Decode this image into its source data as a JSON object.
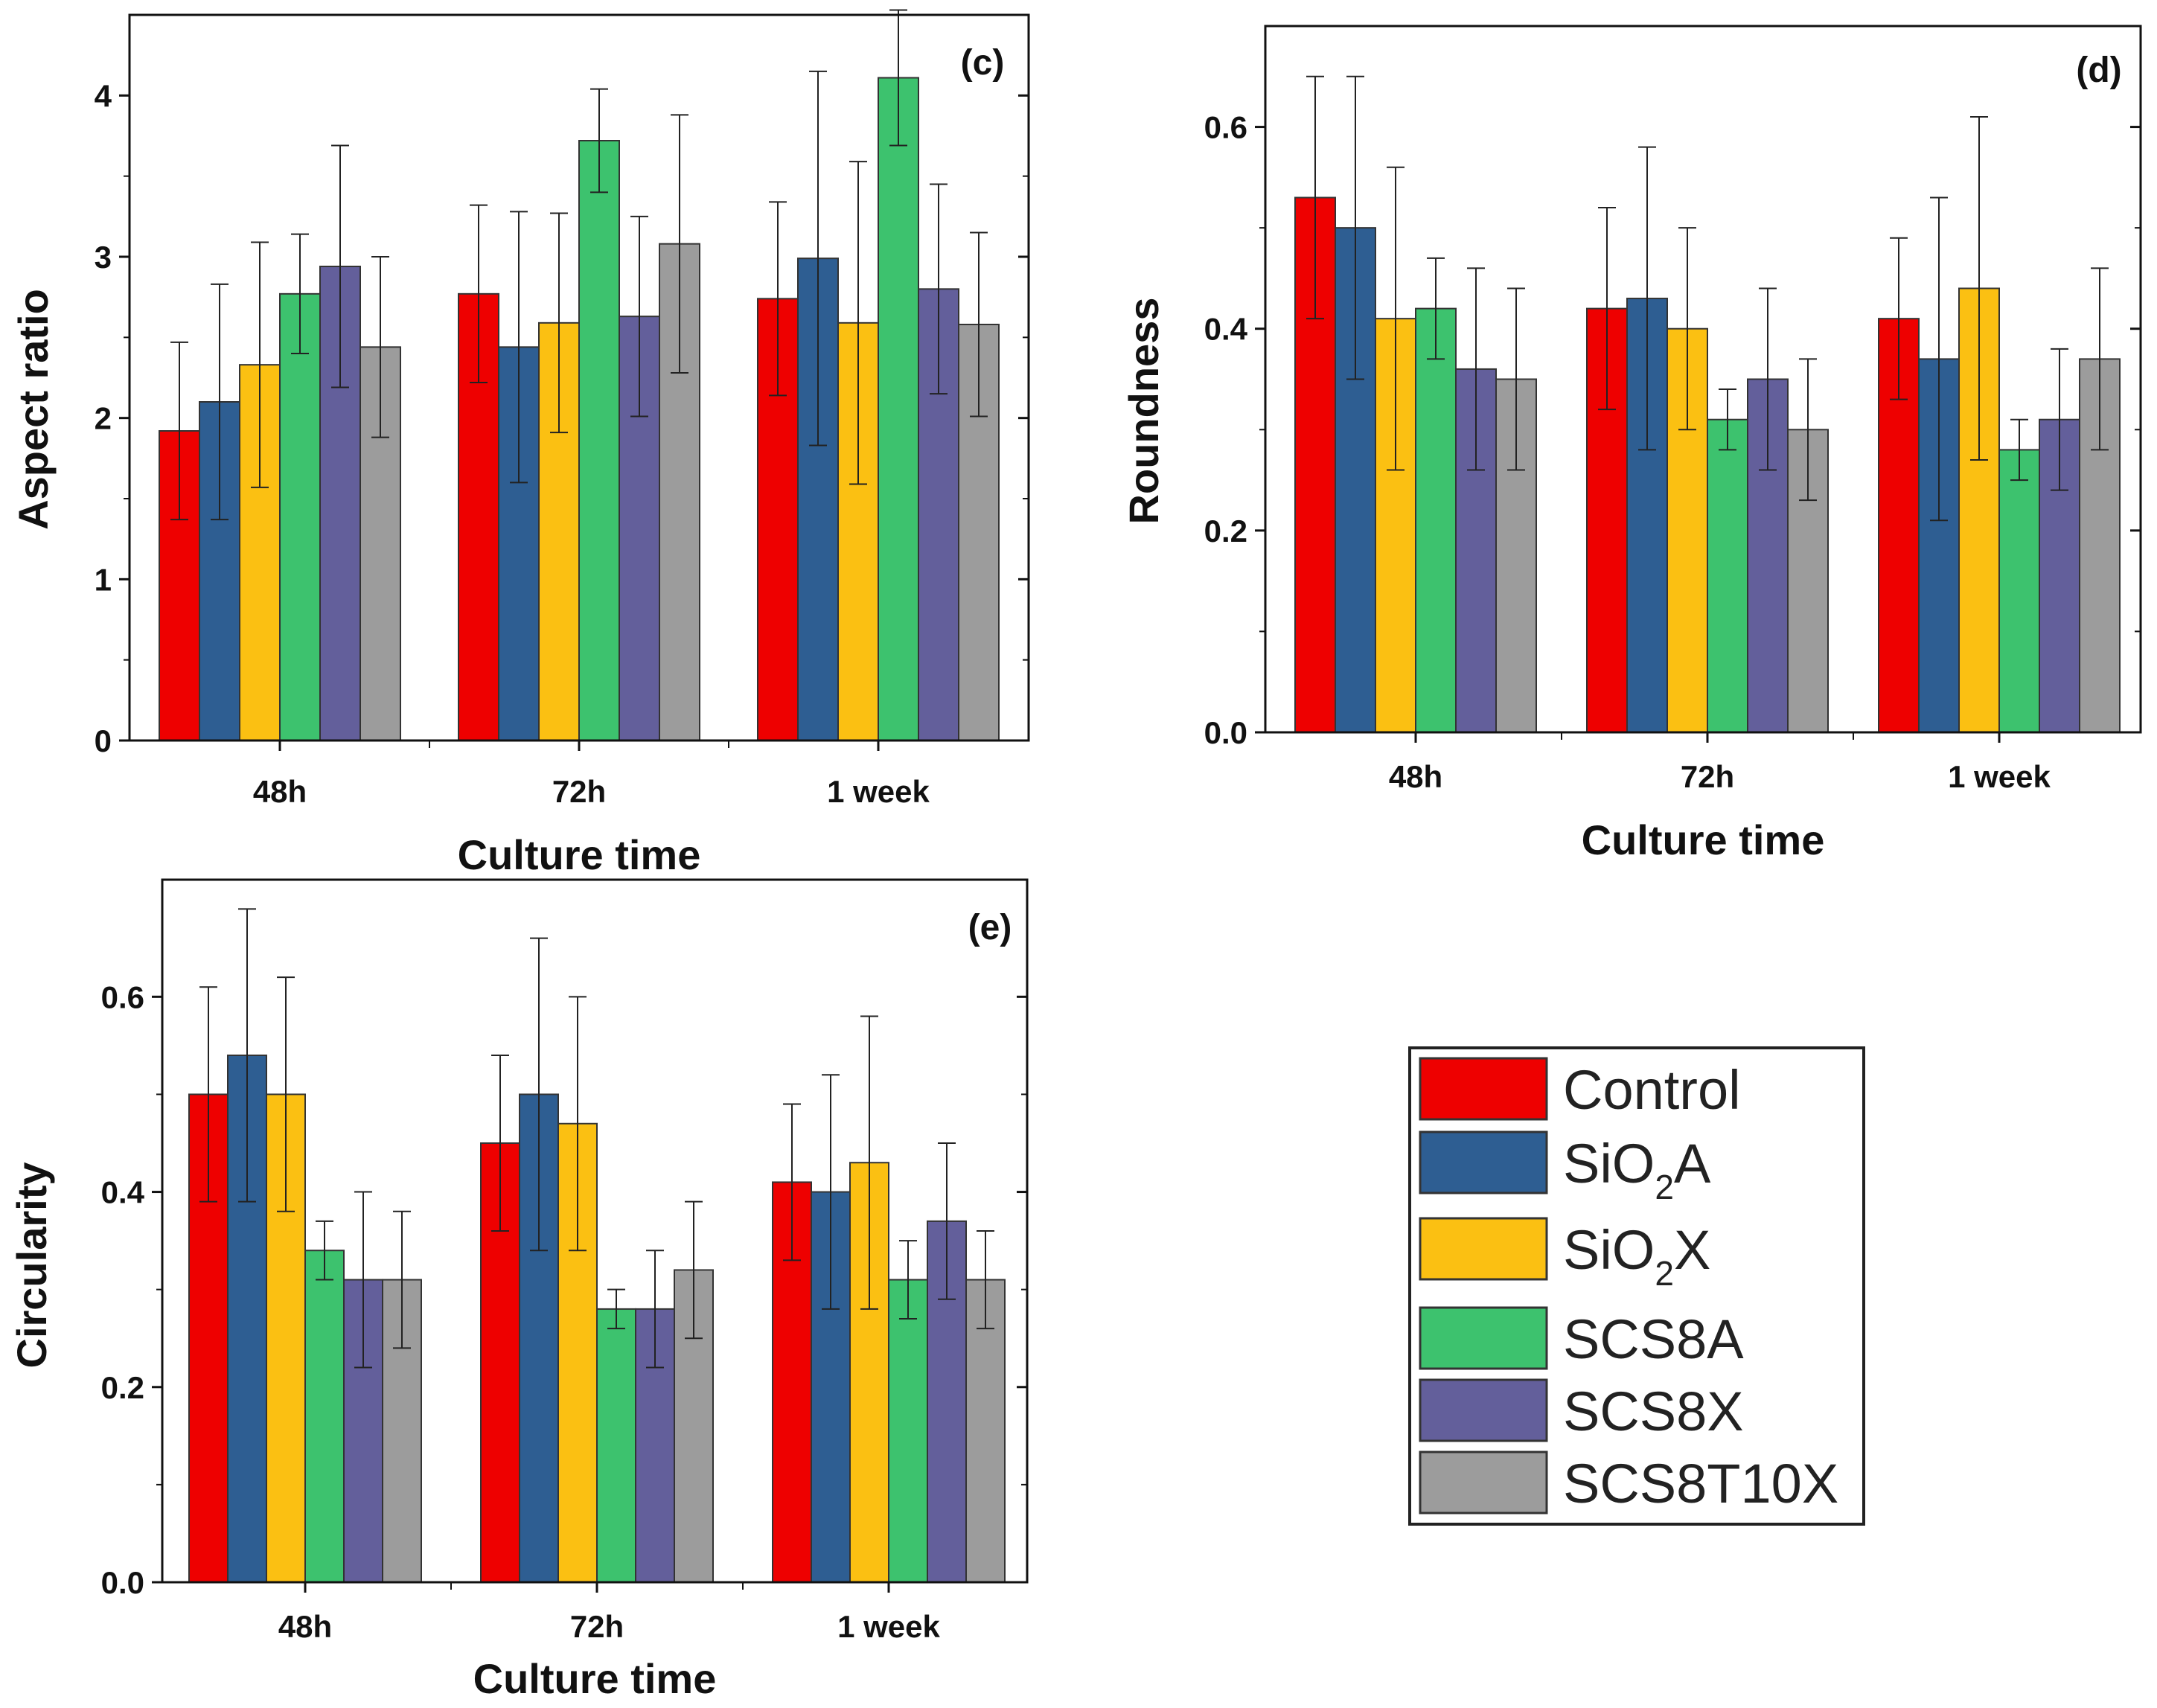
{
  "legend": {
    "entries": [
      {
        "name": "Control",
        "base": "Control",
        "sub": "",
        "tail": "",
        "color": "#EE0000"
      },
      {
        "name": "SiO2A",
        "base": "SiO",
        "sub": "2",
        "tail": "A",
        "color": "#2E5E92"
      },
      {
        "name": "SiO2X",
        "base": "SiO",
        "sub": "2",
        "tail": "X",
        "color": "#FBC012"
      },
      {
        "name": "SCS8A",
        "base": "SCS8A",
        "sub": "",
        "tail": "",
        "color": "#3DC26E"
      },
      {
        "name": "SCS8X",
        "base": "SCS8X",
        "sub": "",
        "tail": "",
        "color": "#635F9B"
      },
      {
        "name": "SCS8T10X",
        "base": "SCS8T10X",
        "sub": "",
        "tail": "",
        "color": "#9C9C9C"
      }
    ]
  },
  "chart_data": [
    {
      "type": "bar",
      "panel": "(c)",
      "xlabel": "Culture time",
      "ylabel": "Aspect ratio",
      "categories": [
        "48h",
        "72h",
        "1 week"
      ],
      "ylim": [
        0,
        4.5
      ],
      "yticks": [
        0,
        1,
        2,
        3,
        4
      ],
      "ytick_labels": [
        "0",
        "1",
        "2",
        "3",
        "4"
      ],
      "series": [
        {
          "name": "Control",
          "values": [
            1.92,
            2.77,
            2.74
          ],
          "errors": [
            0.55,
            0.55,
            0.6
          ]
        },
        {
          "name": "SiO2A",
          "values": [
            2.1,
            2.44,
            2.99
          ],
          "errors": [
            0.73,
            0.84,
            1.16
          ]
        },
        {
          "name": "SiO2X",
          "values": [
            2.33,
            2.59,
            2.59
          ],
          "errors": [
            0.76,
            0.68,
            1.0
          ]
        },
        {
          "name": "SCS8A",
          "values": [
            2.77,
            3.72,
            4.11
          ],
          "errors": [
            0.37,
            0.32,
            0.42
          ]
        },
        {
          "name": "SCS8X",
          "values": [
            2.94,
            2.63,
            2.8
          ],
          "errors": [
            0.75,
            0.62,
            0.65
          ]
        },
        {
          "name": "SCS8T10X",
          "values": [
            2.44,
            3.08,
            2.58
          ],
          "errors": [
            0.56,
            0.8,
            0.57
          ]
        }
      ]
    },
    {
      "type": "bar",
      "panel": "(d)",
      "xlabel": "Culture time",
      "ylabel": "Roundness",
      "categories": [
        "48h",
        "72h",
        "1 week"
      ],
      "ylim": [
        0,
        0.7
      ],
      "yticks": [
        0,
        0.2,
        0.4,
        0.6
      ],
      "ytick_labels": [
        "0.0",
        "0.2",
        "0.4",
        "0.6"
      ],
      "series": [
        {
          "name": "Control",
          "values": [
            0.53,
            0.42,
            0.41
          ],
          "errors": [
            0.12,
            0.1,
            0.08
          ]
        },
        {
          "name": "SiO2A",
          "values": [
            0.5,
            0.43,
            0.37
          ],
          "errors": [
            0.15,
            0.15,
            0.16
          ]
        },
        {
          "name": "SiO2X",
          "values": [
            0.41,
            0.4,
            0.44
          ],
          "errors": [
            0.15,
            0.1,
            0.17
          ]
        },
        {
          "name": "SCS8A",
          "values": [
            0.42,
            0.31,
            0.28
          ],
          "errors": [
            0.05,
            0.03,
            0.03
          ]
        },
        {
          "name": "SCS8X",
          "values": [
            0.36,
            0.35,
            0.31
          ],
          "errors": [
            0.1,
            0.09,
            0.07
          ]
        },
        {
          "name": "SCS8T10X",
          "values": [
            0.35,
            0.3,
            0.37
          ],
          "errors": [
            0.09,
            0.07,
            0.09
          ]
        }
      ]
    },
    {
      "type": "bar",
      "panel": "(e)",
      "xlabel": "Culture time",
      "ylabel": "Circularity",
      "categories": [
        "48h",
        "72h",
        "1 week"
      ],
      "ylim": [
        0,
        0.72
      ],
      "yticks": [
        0,
        0.2,
        0.4,
        0.6
      ],
      "ytick_labels": [
        "0.0",
        "0.2",
        "0.4",
        "0.6"
      ],
      "series": [
        {
          "name": "Control",
          "values": [
            0.5,
            0.45,
            0.41
          ],
          "errors": [
            0.11,
            0.09,
            0.08
          ]
        },
        {
          "name": "SiO2A",
          "values": [
            0.54,
            0.5,
            0.4
          ],
          "errors": [
            0.15,
            0.16,
            0.12
          ]
        },
        {
          "name": "SiO2X",
          "values": [
            0.5,
            0.47,
            0.43
          ],
          "errors": [
            0.12,
            0.13,
            0.15
          ]
        },
        {
          "name": "SCS8A",
          "values": [
            0.34,
            0.28,
            0.31
          ],
          "errors": [
            0.03,
            0.02,
            0.04
          ]
        },
        {
          "name": "SCS8X",
          "values": [
            0.31,
            0.28,
            0.37
          ],
          "errors": [
            0.09,
            0.06,
            0.08
          ]
        },
        {
          "name": "SCS8T10X",
          "values": [
            0.31,
            0.32,
            0.31
          ],
          "errors": [
            0.07,
            0.07,
            0.05
          ]
        }
      ]
    }
  ]
}
